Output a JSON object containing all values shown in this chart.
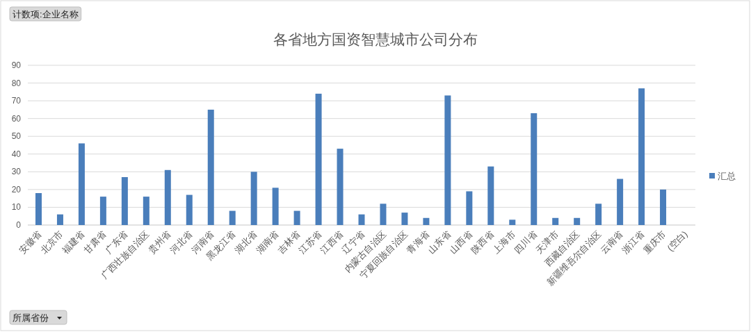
{
  "chart_data": {
    "type": "bar",
    "title": "各省地方国资智慧城市公司分布",
    "categories": [
      "安徽省",
      "北京市",
      "福建省",
      "甘肃省",
      "广东省",
      "广西壮族自治区",
      "贵州省",
      "河北省",
      "河南省",
      "黑龙江省",
      "湖北省",
      "湖南省",
      "吉林省",
      "江苏省",
      "江西省",
      "辽宁省",
      "内蒙古自治区",
      "宁夏回族自治区",
      "青海省",
      "山东省",
      "山西省",
      "陕西省",
      "上海市",
      "四川省",
      "天津市",
      "西藏自治区",
      "新疆维吾尔自治区",
      "云南省",
      "浙江省",
      "重庆市",
      "(空白)"
    ],
    "series": [
      {
        "name": "汇总",
        "color": "#4a7ebb",
        "values": [
          18,
          6,
          46,
          16,
          27,
          16,
          31,
          17,
          65,
          8,
          30,
          21,
          8,
          74,
          43,
          6,
          12,
          7,
          4,
          73,
          19,
          33,
          3,
          63,
          4,
          4,
          12,
          26,
          77,
          20,
          null
        ]
      }
    ],
    "ylim": [
      0,
      90
    ],
    "yticks": [
      0,
      10,
      20,
      30,
      40,
      50,
      60,
      70,
      80,
      90
    ],
    "grid": "y",
    "legend": "right",
    "annotations": [
      "计数项:企业名称",
      "所属省份"
    ]
  }
}
